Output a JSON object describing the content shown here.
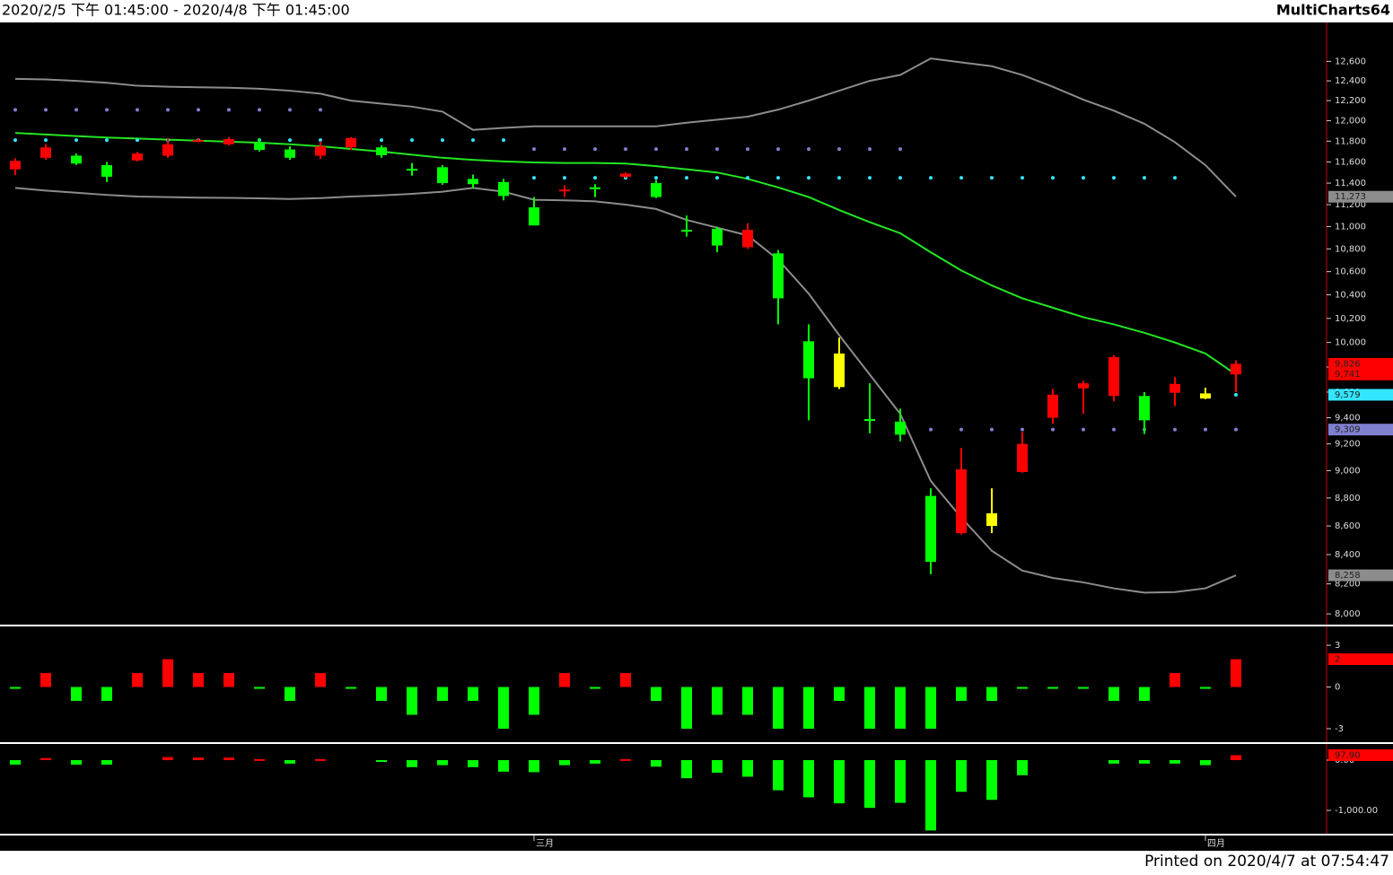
{
  "header": {
    "range": "2020/2/5 下午 01:45:00 - 2020/4/8 下午 01:45:00",
    "brand": "MultiCharts64"
  },
  "footer": "Printed on 2020/4/7 at 07:54:47",
  "chart_data": [
    {
      "type": "candlestick",
      "log": true,
      "categories": [
        null,
        null,
        null,
        null,
        null,
        null,
        null,
        null,
        null,
        null,
        null,
        null,
        null,
        null,
        null,
        null,
        null,
        "三月",
        null,
        null,
        null,
        null,
        null,
        null,
        null,
        null,
        null,
        null,
        null,
        null,
        null,
        null,
        null,
        null,
        null,
        null,
        null,
        null,
        null,
        "四月",
        null
      ],
      "open": [
        11530,
        11640,
        11660,
        11570,
        11615,
        11660,
        11800,
        11770,
        11785,
        11720,
        11660,
        11740,
        11740,
        11535,
        11550,
        11440,
        11410,
        11175,
        11330,
        11360,
        11460,
        11400,
        10970,
        10980,
        10815,
        10760,
        10010,
        9910,
        9390,
        9370,
        8815,
        8550,
        8690,
        8990,
        9400,
        9630,
        9570,
        9570,
        9595,
        9590,
        9741
      ],
      "high": [
        11635,
        11770,
        11680,
        11600,
        11695,
        11830,
        11830,
        11840,
        11830,
        11750,
        11800,
        11840,
        11760,
        11590,
        11570,
        11480,
        11440,
        11270,
        11380,
        11390,
        11500,
        11430,
        11100,
        11000,
        11030,
        10790,
        10150,
        10040,
        9670,
        9470,
        8870,
        9170,
        8870,
        9290,
        9625,
        9690,
        9895,
        9600,
        9720,
        9635,
        9855
      ],
      "low": [
        11475,
        11620,
        11570,
        11410,
        11605,
        11640,
        11790,
        11760,
        11700,
        11620,
        11630,
        11715,
        11640,
        11470,
        11385,
        11350,
        11240,
        11010,
        11270,
        11270,
        11450,
        11260,
        10910,
        10770,
        10800,
        10150,
        9380,
        9625,
        9280,
        9220,
        8265,
        8540,
        8550,
        8985,
        9355,
        9430,
        9530,
        9275,
        9490,
        9545,
        9600
      ],
      "close": [
        11610,
        11740,
        11585,
        11460,
        11680,
        11770,
        11810,
        11820,
        11715,
        11640,
        11750,
        11830,
        11665,
        11525,
        11400,
        11390,
        11280,
        11010,
        11340,
        11350,
        11490,
        11270,
        10960,
        10830,
        10970,
        10370,
        9710,
        9640,
        9375,
        9270,
        8350,
        9010,
        8600,
        9200,
        9580,
        9670,
        9880,
        9380,
        9665,
        9550,
        9826
      ],
      "candle_colors": [
        "#ff0000",
        "#ff0000",
        "#00ff00",
        "#00ff00",
        "#ff0000",
        "#ff0000",
        "#ff0000",
        "#ff0000",
        "#00ff00",
        "#00ff00",
        "#ff0000",
        "#ff0000",
        "#00ff00",
        "#00ff00",
        "#00ff00",
        "#00ff00",
        "#00ff00",
        "#00ff00",
        "#ff0000",
        "#00ff00",
        "#ff0000",
        "#00ff00",
        "#00ff00",
        "#00ff00",
        "#ff0000",
        "#00ff00",
        "#00ff00",
        "#ffff00",
        "#00ff00",
        "#00ff00",
        "#00ff00",
        "#ff0000",
        "#ffff00",
        "#ff0000",
        "#ff0000",
        "#ff0000",
        "#ff0000",
        "#00ff00",
        "#ff0000",
        "#ffff00",
        "#ff0000"
      ],
      "lines": [
        {
          "color": "#8c8c8c",
          "values": [
            12420,
            12415,
            12400,
            12380,
            12350,
            12340,
            12335,
            12330,
            12320,
            12300,
            12270,
            12200,
            12170,
            12140,
            12090,
            11910,
            11930,
            11945,
            11945,
            11945,
            11945,
            11945,
            11980,
            12010,
            12040,
            12110,
            12200,
            12300,
            12400,
            12460,
            12630,
            12590,
            12550,
            12460,
            12340,
            12210,
            12100,
            11970,
            11790,
            11570,
            11273
          ]
        },
        {
          "color": "#22e622",
          "values": [
            11880,
            11865,
            11850,
            11835,
            11825,
            11815,
            11805,
            11795,
            11785,
            11770,
            11750,
            11725,
            11700,
            11670,
            11640,
            11620,
            11605,
            11595,
            11590,
            11590,
            11585,
            11560,
            11530,
            11500,
            11440,
            11360,
            11270,
            11150,
            11040,
            10940,
            10770,
            10610,
            10480,
            10370,
            10290,
            10210,
            10150,
            10080,
            10000,
            9910,
            9741
          ]
        },
        {
          "color": "#8c8c8c",
          "values": [
            11355,
            11330,
            11310,
            11290,
            11275,
            11270,
            11265,
            11262,
            11258,
            11252,
            11260,
            11275,
            11285,
            11300,
            11320,
            11355,
            11320,
            11245,
            11240,
            11230,
            11200,
            11160,
            11060,
            10990,
            10920,
            10705,
            10410,
            10060,
            9740,
            9430,
            8924,
            8659,
            8426,
            8290,
            8240,
            8210,
            8170,
            8141,
            8145,
            8170,
            8258
          ]
        }
      ],
      "dots": [
        {
          "color": "#8080d0",
          "values": [
            12108,
            12108,
            12108,
            12108,
            12108,
            12108,
            12108,
            12108,
            12108,
            12108,
            12108,
            null,
            null,
            null,
            null,
            null,
            null,
            11723,
            11723,
            11723,
            11723,
            11723,
            11723,
            11723,
            11723,
            11723,
            11723,
            11723,
            11723,
            11723,
            9309,
            9309,
            9309,
            9309,
            9309,
            9309,
            9309,
            9309,
            9309,
            9309,
            9309
          ]
        },
        {
          "color": "#33e6ff",
          "values": [
            11810,
            11810,
            11810,
            11810,
            11810,
            11810,
            11810,
            11810,
            11810,
            11810,
            11810,
            11810,
            11810,
            11810,
            11810,
            11810,
            11810,
            11450,
            11450,
            11450,
            11450,
            11450,
            11450,
            11450,
            11450,
            11450,
            11450,
            11450,
            11450,
            11450,
            11450,
            11450,
            11450,
            11450,
            11450,
            11450,
            11450,
            11450,
            11450,
            null,
            9579
          ]
        }
      ],
      "tags": [
        {
          "value": 11273,
          "label": "11,273",
          "color": "#8c8c8c"
        },
        {
          "value": 9826,
          "label": "9,826",
          "color": "#ff0000"
        },
        {
          "value": 9741,
          "label": "9,741",
          "color": "#ff0000"
        },
        {
          "value": 9579,
          "label": "9,579",
          "color": "#33e6ff"
        },
        {
          "value": 9309,
          "label": "9,309",
          "color": "#8080d0"
        },
        {
          "value": 8258,
          "label": "8,258",
          "color": "#8c8c8c"
        }
      ],
      "ylim": [
        7924,
        13010
      ],
      "yticks": [
        {
          "value": 8000,
          "label": "8,000"
        },
        {
          "value": 8200,
          "label": "8,200"
        },
        {
          "value": 8400,
          "label": "8,400"
        },
        {
          "value": 8600,
          "label": "8,600"
        },
        {
          "value": 8800,
          "label": "8,800"
        },
        {
          "value": 9000,
          "label": "9,000"
        },
        {
          "value": 9200,
          "label": "9,200"
        },
        {
          "value": 9400,
          "label": "9,400"
        },
        {
          "value": 9600,
          "label": "9,600"
        },
        {
          "value": 9800,
          "label": "9,800"
        },
        {
          "value": 10000,
          "label": "10,000"
        },
        {
          "value": 10200,
          "label": "10,200"
        },
        {
          "value": 10400,
          "label": "10,400"
        },
        {
          "value": 10600,
          "label": "10,600"
        },
        {
          "value": 10800,
          "label": "10,800"
        },
        {
          "value": 11000,
          "label": "11,000"
        },
        {
          "value": 11200,
          "label": "11,200"
        },
        {
          "value": 11400,
          "label": "11,400"
        },
        {
          "value": 11600,
          "label": "11,600"
        },
        {
          "value": 11800,
          "label": "11,800"
        },
        {
          "value": 12000,
          "label": "12,000"
        },
        {
          "value": 12200,
          "label": "12,200"
        },
        {
          "value": 12400,
          "label": "12,400"
        },
        {
          "value": 12600,
          "label": "12,600"
        }
      ]
    },
    {
      "type": "bar",
      "up_color": "#ff0000",
      "down_color": "#00ff00",
      "values": [
        0,
        1,
        -1,
        -1,
        1,
        2,
        1,
        1,
        0,
        -1,
        1,
        0,
        -1,
        -2,
        -1,
        -1,
        -3,
        -2,
        1,
        0,
        1,
        -1,
        -3,
        -2,
        -2,
        -3,
        -3,
        -1,
        -3,
        -3,
        -3,
        -1,
        -1,
        0,
        0,
        0,
        -1,
        -1,
        1,
        0,
        2
      ],
      "tags": [
        {
          "value": 2,
          "label": "2",
          "color": "#ff0000"
        }
      ],
      "ylim": [
        -3.97,
        4.23
      ],
      "yticks": [
        -3,
        0,
        3
      ]
    },
    {
      "type": "bar",
      "up_color": "#ff0000",
      "down_color": "#00ff00",
      "values": [
        -90,
        40,
        -90,
        -90,
        null,
        60,
        50,
        50,
        20,
        -70,
        20,
        null,
        -20,
        -140,
        -100,
        -140,
        -230,
        -240,
        -100,
        -70,
        20,
        -130,
        -360,
        -250,
        -330,
        -600,
        -740,
        -860,
        -950,
        -850,
        -1400,
        -630,
        -790,
        -300,
        null,
        null,
        -70,
        -70,
        -70,
        -100,
        97.9
      ],
      "tags": [
        {
          "value": 97.9,
          "label": "97.90",
          "color": "#ff0000"
        }
      ],
      "ylim": [
        -1482,
        303
      ],
      "yticks": [
        {
          "value": -1000,
          "label": "-1,000.00"
        },
        {
          "value": 0,
          "label": "0.00"
        }
      ]
    }
  ]
}
